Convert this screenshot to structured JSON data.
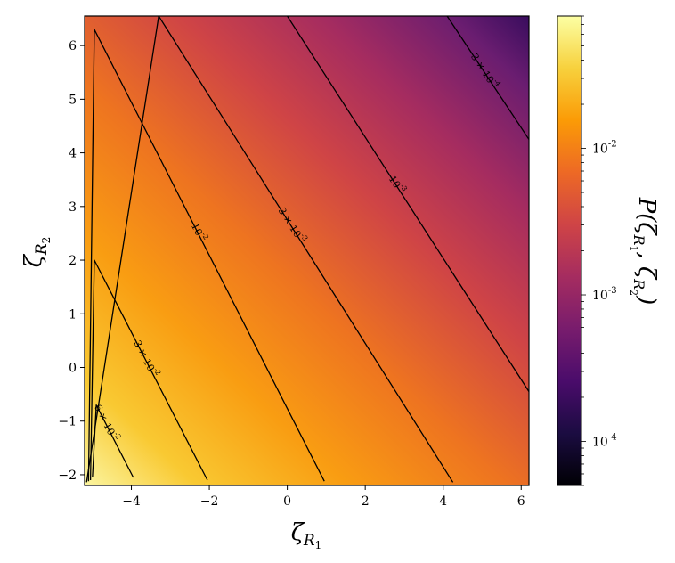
{
  "chart_data": {
    "type": "heatmap",
    "title": "",
    "xlabel": "ζ_R1",
    "ylabel": "ζ_R2",
    "xlim": [
      -5.2,
      6.2
    ],
    "ylim": [
      -2.2,
      6.55
    ],
    "xticks": [
      -4,
      -2,
      0,
      2,
      4,
      6
    ],
    "yticks": [
      -2,
      -1,
      0,
      1,
      2,
      3,
      4,
      5,
      6
    ],
    "colorscale": "inferno",
    "colorbar": {
      "label": "P(ζ_R1, ζ_R2)",
      "scale": "log",
      "range": [
        5e-05,
        0.08
      ],
      "ticks": [
        {
          "value": 0.0001,
          "label": "10^-4"
        },
        {
          "value": 0.001,
          "label": "10^-3"
        },
        {
          "value": 0.01,
          "label": "10^-2"
        }
      ]
    },
    "field": {
      "peak": [
        -5.0,
        -2.1
      ],
      "peak_value": 0.08,
      "description_values": {
        "corner_bottom_left": 0.08,
        "corner_top_right": 5e-05
      }
    },
    "contours": [
      {
        "value": 0.06,
        "label": "6 × 10^-2",
        "vertices": [
          [
            -5.0,
            -2.05
          ],
          [
            -4.9,
            -0.7
          ],
          [
            -3.95,
            -2.05
          ]
        ]
      },
      {
        "value": 0.03,
        "label": "3 × 10^-2",
        "vertices": [
          [
            -5.05,
            -2.1
          ],
          [
            -4.95,
            2.0
          ],
          [
            -2.05,
            -2.1
          ]
        ]
      },
      {
        "value": 0.01,
        "label": "10^-2",
        "vertices": [
          [
            -5.1,
            -2.12
          ],
          [
            -4.95,
            6.3
          ],
          [
            0.95,
            -2.12
          ]
        ]
      },
      {
        "value": 0.003,
        "label": "3 × 10^-3",
        "vertices": [
          [
            -5.15,
            -2.14
          ],
          [
            -3.3,
            6.55
          ],
          [
            4.25,
            -2.14
          ]
        ]
      },
      {
        "value": 0.001,
        "label": "10^-3",
        "vertices": [
          [
            0.0,
            6.55
          ],
          [
            6.2,
            -0.45
          ]
        ]
      },
      {
        "value": 0.0003,
        "label": "3 × 10^-4",
        "vertices": [
          [
            4.1,
            6.55
          ],
          [
            6.2,
            4.25
          ]
        ]
      }
    ]
  }
}
